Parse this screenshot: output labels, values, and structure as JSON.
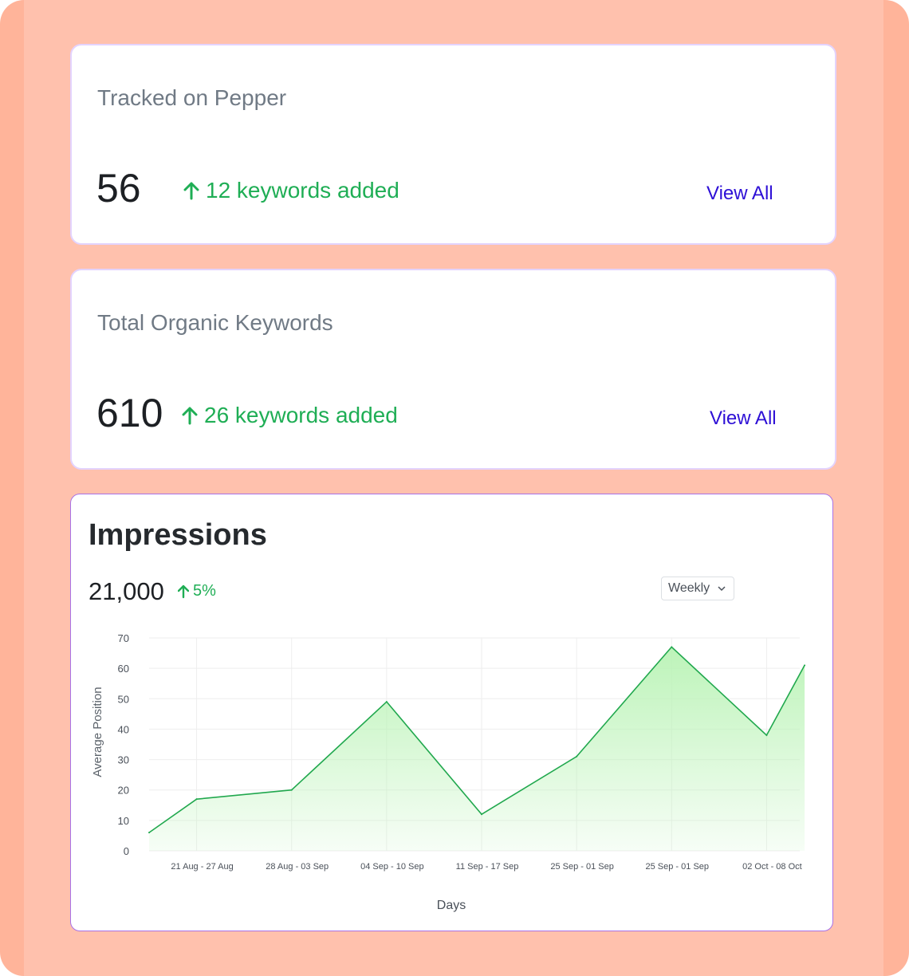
{
  "cards": [
    {
      "title": "Tracked on Pepper",
      "value": "56",
      "change_text": "12 keywords added",
      "link_label": "View All"
    },
    {
      "title": "Total Organic Keywords",
      "value": "610",
      "change_text": "26 keywords added",
      "link_label": "View All"
    }
  ],
  "impressions": {
    "title": "Impressions",
    "value": "21,000",
    "change_text": "5%",
    "period_select": {
      "selected": "Weekly",
      "icon": "chevron-down-icon"
    }
  },
  "colors": {
    "accent_green": "#1fae55",
    "link_blue": "#2d0fd6",
    "frame_bg": "#ffb49a",
    "line": "#21a84e",
    "area": "#b9f3b5"
  },
  "chart_data": {
    "type": "area",
    "title": "",
    "xlabel": "Days",
    "ylabel": "Average Position",
    "ylim": [
      0,
      70
    ],
    "yticks": [
      0,
      10,
      20,
      30,
      40,
      50,
      60,
      70
    ],
    "grid": true,
    "categories": [
      "21 Aug - 27 Aug",
      "28 Aug - 03 Sep",
      "04 Sep - 10 Sep",
      "11 Sep - 17 Sep",
      "25 Sep - 01 Sep",
      "25 Sep - 01 Sep",
      "02 Oct - 08 Oct"
    ],
    "points": [
      {
        "x": 0.0,
        "y": 6
      },
      {
        "x": 0.5,
        "y": 17
      },
      {
        "x": 1.5,
        "y": 20
      },
      {
        "x": 2.5,
        "y": 49
      },
      {
        "x": 3.5,
        "y": 12
      },
      {
        "x": 4.5,
        "y": 31
      },
      {
        "x": 5.5,
        "y": 67
      },
      {
        "x": 6.5,
        "y": 38
      },
      {
        "x": 6.9,
        "y": 61
      }
    ]
  }
}
